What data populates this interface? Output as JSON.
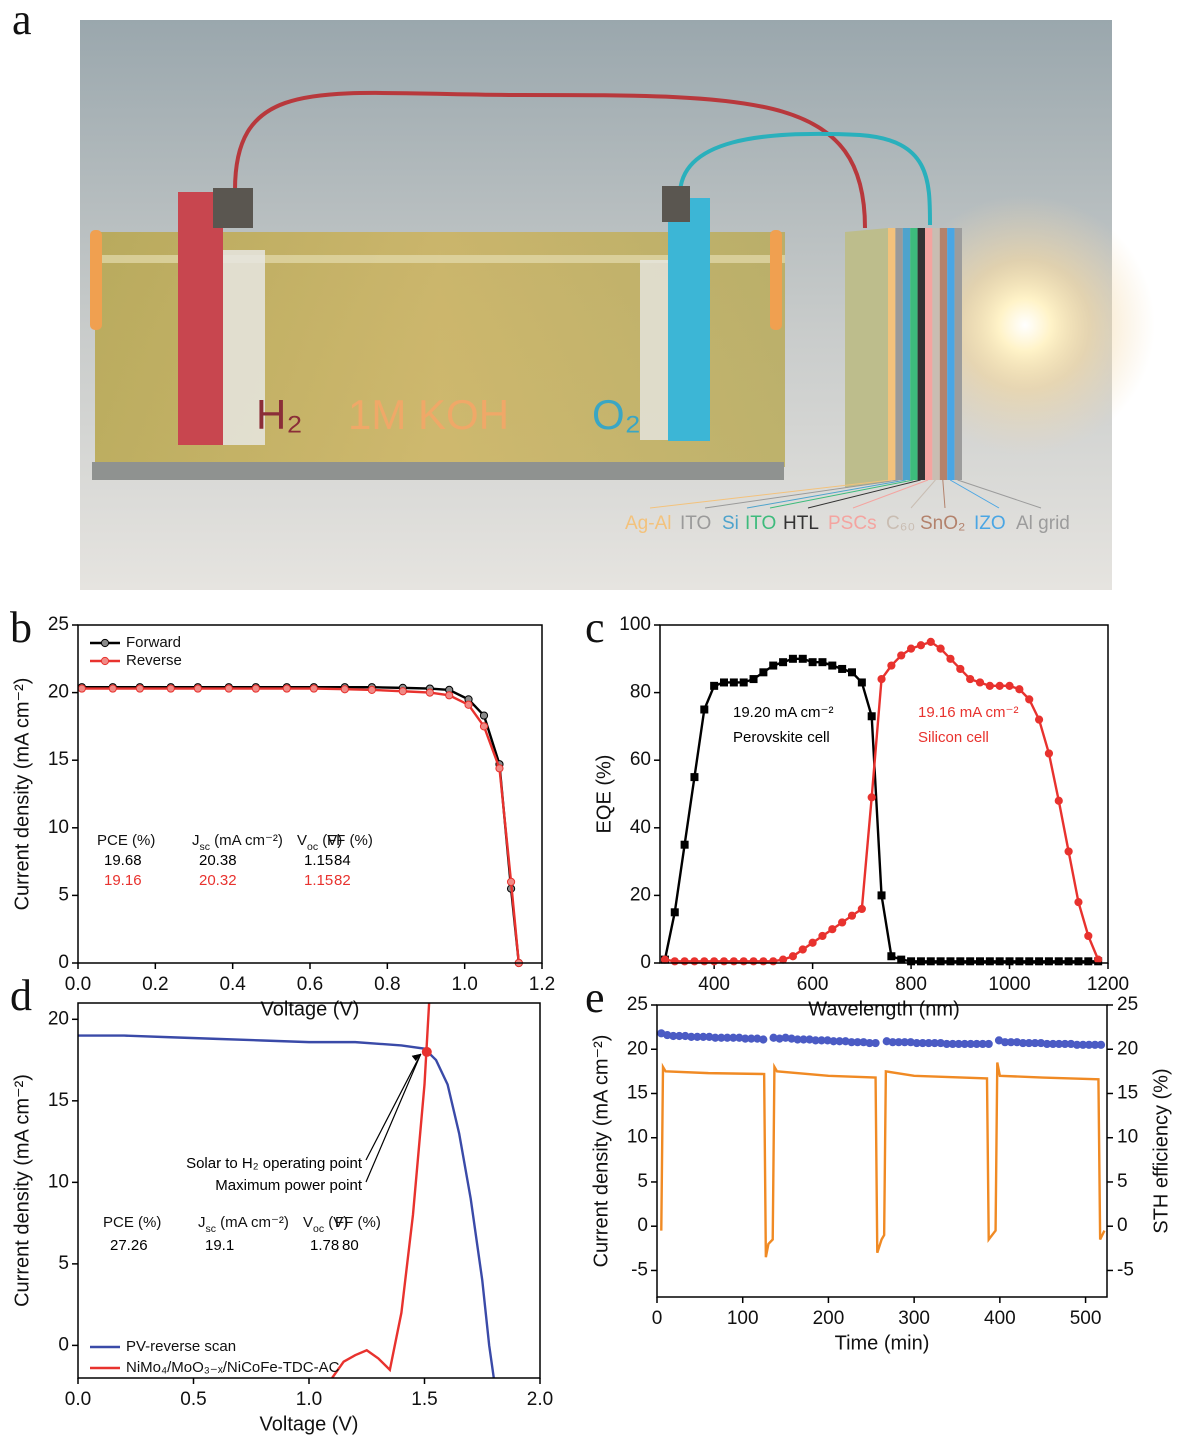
{
  "illustration": {
    "panel": "a",
    "electrolyte": "1M KOH",
    "cathode_gas": "H₂",
    "anode_gas": "O₂",
    "layers": [
      {
        "name": "Ag-Al",
        "color": "#f3c27c"
      },
      {
        "name": "ITO",
        "color": "#9a9a9a"
      },
      {
        "name": "Si",
        "color": "#4ea3cc"
      },
      {
        "name": "ITO",
        "color": "#3dbb7c"
      },
      {
        "name": "HTL",
        "color": "#333333"
      },
      {
        "name": "PSCs",
        "color": "#f4a4a0"
      },
      {
        "name": "C₆₀",
        "color": "#c9bdb2"
      },
      {
        "name": "SnO₂",
        "color": "#b3826c"
      },
      {
        "name": "IZO",
        "color": "#4aa6e4"
      },
      {
        "name": "Al grid",
        "color": "#9c9c9c"
      }
    ]
  },
  "chart_data": [
    {
      "panel": "b",
      "type": "line",
      "xlabel": "Voltage (V)",
      "ylabel": "Current density (mA cm⁻²)",
      "xlim": [
        0,
        1.2
      ],
      "xticks": [
        {
          "value": 0,
          "label": "0.0"
        },
        0.2,
        0.4,
        0.6,
        0.8,
        {
          "value": 1,
          "label": "1.0"
        },
        1.2
      ],
      "ylim": [
        0,
        25
      ],
      "yticks": [
        0,
        5,
        10,
        15,
        20,
        25
      ],
      "legend": "upper left",
      "series": [
        {
          "name": "Forward",
          "color": "#000000",
          "marker": "circle",
          "marker_color": "#8a8a8a",
          "x": [
            0.01,
            0.09,
            0.16,
            0.24,
            0.31,
            0.39,
            0.46,
            0.54,
            0.61,
            0.69,
            0.76,
            0.84,
            0.91,
            0.96,
            1.01,
            1.05,
            1.09,
            1.12,
            1.14
          ],
          "values": [
            20.4,
            20.4,
            20.4,
            20.4,
            20.4,
            20.4,
            20.4,
            20.4,
            20.4,
            20.4,
            20.4,
            20.35,
            20.3,
            20.2,
            19.5,
            18.3,
            14.7,
            5.5,
            0
          ]
        },
        {
          "name": "Reverse",
          "color": "#e8322e",
          "marker": "circle",
          "marker_color": "#f08a86",
          "x": [
            0.01,
            0.09,
            0.16,
            0.24,
            0.31,
            0.39,
            0.46,
            0.54,
            0.61,
            0.69,
            0.76,
            0.84,
            0.91,
            0.96,
            1.01,
            1.05,
            1.09,
            1.12,
            1.14
          ],
          "values": [
            20.3,
            20.3,
            20.3,
            20.3,
            20.3,
            20.3,
            20.3,
            20.3,
            20.3,
            20.25,
            20.2,
            20.1,
            20.0,
            19.8,
            19.1,
            17.5,
            14.4,
            6.0,
            0
          ]
        }
      ],
      "table": {
        "header": [
          "PCE (%)",
          [
            "J",
            {
              "sub": "sc"
            },
            " (mA cm⁻²)"
          ],
          [
            "V",
            {
              "sub": "oc"
            },
            " (V)"
          ],
          "FF (%)"
        ],
        "rows": [
          {
            "color": "#000000",
            "cells": [
              "19.68",
              "20.38",
              "1.15",
              "84"
            ]
          },
          {
            "color": "#e8322e",
            "cells": [
              "19.16",
              "20.32",
              "1.15",
              "82"
            ]
          }
        ]
      }
    },
    {
      "panel": "c",
      "type": "line",
      "xlabel": "Wavelength (nm)",
      "ylabel": "EQE (%)",
      "xlim": [
        290,
        1200
      ],
      "xticks": [
        400,
        600,
        800,
        1000,
        1200
      ],
      "ylim": [
        0,
        100
      ],
      "yticks": [
        0,
        20,
        40,
        60,
        80,
        100
      ],
      "series": [
        {
          "name": "Perovskite cell",
          "color": "#000000",
          "marker": "square",
          "x": [
            300,
            320,
            340,
            360,
            380,
            400,
            420,
            440,
            460,
            480,
            500,
            520,
            540,
            560,
            580,
            600,
            620,
            640,
            660,
            680,
            700,
            720,
            740,
            760,
            780,
            800,
            820,
            840,
            860,
            880,
            900,
            920,
            940,
            960,
            980,
            1000,
            1020,
            1040,
            1060,
            1080,
            1100,
            1120,
            1140,
            1160,
            1180
          ],
          "values": [
            1,
            15,
            35,
            55,
            75,
            82,
            83,
            83,
            83,
            84,
            86,
            88,
            89,
            90,
            90,
            89,
            89,
            88,
            87,
            86,
            83,
            73,
            20,
            2,
            1,
            0.5,
            0.5,
            0.5,
            0.5,
            0.5,
            0.5,
            0.5,
            0.5,
            0.5,
            0.5,
            0.5,
            0.5,
            0.5,
            0.5,
            0.5,
            0.5,
            0.5,
            0.5,
            0.5,
            0.5
          ]
        },
        {
          "name": "Silicon cell",
          "color": "#e8322e",
          "marker": "circle",
          "x": [
            300,
            320,
            340,
            360,
            380,
            400,
            420,
            440,
            460,
            480,
            500,
            520,
            540,
            560,
            580,
            600,
            620,
            640,
            660,
            680,
            700,
            720,
            740,
            760,
            780,
            800,
            820,
            840,
            860,
            880,
            900,
            920,
            940,
            960,
            980,
            1000,
            1020,
            1040,
            1060,
            1080,
            1100,
            1120,
            1140,
            1160,
            1180
          ],
          "values": [
            1,
            0.5,
            0.5,
            0.5,
            0.5,
            0.5,
            0.5,
            0.5,
            0.5,
            0.5,
            0.5,
            0.5,
            1,
            2,
            4,
            6,
            8,
            10,
            12,
            14,
            16,
            49,
            84,
            88,
            91,
            93,
            94,
            95,
            93,
            90,
            87,
            84,
            83,
            82,
            82,
            82,
            81,
            78,
            72,
            62,
            48,
            33,
            18,
            8,
            1
          ]
        }
      ],
      "annotations": [
        {
          "text": "19.20 mA cm⁻²",
          "color": "#000000"
        },
        {
          "text": "Perovskite cell",
          "color": "#000000"
        },
        {
          "text": "19.16 mA cm⁻²",
          "color": "#e8322e"
        },
        {
          "text": "Silicon cell",
          "color": "#e8322e"
        }
      ]
    },
    {
      "panel": "d",
      "type": "line",
      "xlabel": "Voltage (V)",
      "ylabel": "Current density (mA cm⁻²)",
      "xlim": [
        0,
        2
      ],
      "xticks": [
        {
          "value": 0,
          "label": "0.0"
        },
        0.5,
        {
          "value": 1,
          "label": "1.0"
        },
        1.5,
        {
          "value": 2,
          "label": "2.0"
        }
      ],
      "ylim": [
        -2,
        21
      ],
      "yticks": [
        0,
        5,
        10,
        15,
        20
      ],
      "legend": "lower left",
      "series": [
        {
          "name": "PV-reverse scan",
          "color": "#3a4aa8",
          "x": [
            0,
            0.2,
            0.4,
            0.6,
            0.8,
            1.0,
            1.2,
            1.4,
            1.5,
            1.55,
            1.6,
            1.65,
            1.7,
            1.75,
            1.78,
            1.8
          ],
          "values": [
            19,
            19,
            18.9,
            18.8,
            18.7,
            18.6,
            18.6,
            18.4,
            18.2,
            17.5,
            16,
            13,
            9,
            4,
            0,
            -2
          ]
        },
        {
          "name": "NiMo₄/MoO₃₋ₓ/NiCoFe-TDC-AC",
          "color": "#e8322e",
          "x": [
            1.1,
            1.15,
            1.2,
            1.25,
            1.3,
            1.35,
            1.4,
            1.45,
            1.5,
            1.52
          ],
          "values": [
            -2,
            -1,
            -0.6,
            -0.3,
            -0.8,
            -1.5,
            2,
            8,
            16,
            21
          ]
        }
      ],
      "operating_point": {
        "x": 1.51,
        "y": 18.0,
        "color": "#e8322e"
      },
      "annotations": [
        {
          "text": "Solar to H₂ operating point",
          "color": "#000000"
        },
        {
          "text": "Maximum power point",
          "color": "#000000"
        }
      ],
      "table": {
        "header": [
          "PCE (%)",
          [
            "J",
            {
              "sub": "sc"
            },
            " (mA cm⁻²)"
          ],
          [
            "V",
            {
              "sub": "oc"
            },
            " (V)"
          ],
          "FF (%)"
        ],
        "rows": [
          {
            "color": "#000000",
            "cells": [
              "27.26",
              "19.1",
              "1.78",
              "80"
            ]
          }
        ]
      }
    },
    {
      "panel": "e",
      "type": "line",
      "xlabel": "Time (min)",
      "ylabel": "Current density (mA cm⁻²)",
      "y2label": "STH efficiency (%)",
      "xlim": [
        0,
        525
      ],
      "xticks": [
        0,
        100,
        200,
        300,
        400,
        500
      ],
      "ylim": [
        -8,
        25
      ],
      "yticks": [
        -5,
        0,
        5,
        10,
        15,
        20,
        25
      ],
      "y2lim": [
        -8,
        25
      ],
      "y2ticks": [
        -5,
        0,
        5,
        10,
        15,
        20,
        25
      ],
      "series": [
        {
          "name": "Current density",
          "color": "#f08a24",
          "x": [
            5,
            7,
            10,
            60,
            125,
            127,
            130,
            135,
            137,
            140,
            200,
            255,
            257,
            262,
            265,
            267,
            300,
            385,
            387,
            395,
            397,
            400,
            450,
            515,
            517,
            522
          ],
          "values": [
            -0.5,
            18,
            17.5,
            17.3,
            17.2,
            -3.5,
            -2,
            -1.5,
            18,
            17.5,
            17,
            16.8,
            -3,
            -1.5,
            -1,
            17.5,
            17,
            16.7,
            -1.5,
            -0.5,
            18.5,
            17,
            16.8,
            16.6,
            -1.5,
            -0.5
          ]
        },
        {
          "name": "STH efficiency",
          "color": "#4b5bc4",
          "axis": "y2",
          "line": false,
          "marker": "circle",
          "x": [
            5,
            12,
            19,
            26,
            33,
            40,
            47,
            54,
            61,
            68,
            75,
            82,
            89,
            96,
            103,
            110,
            117,
            124,
            136,
            143,
            150,
            157,
            164,
            171,
            178,
            185,
            192,
            199,
            206,
            213,
            220,
            227,
            234,
            241,
            248,
            255,
            268,
            275,
            282,
            289,
            296,
            303,
            310,
            317,
            324,
            331,
            338,
            345,
            352,
            359,
            366,
            373,
            380,
            387,
            399,
            406,
            413,
            420,
            427,
            434,
            441,
            448,
            455,
            462,
            469,
            476,
            483,
            490,
            497,
            504,
            511,
            518
          ],
          "values": [
            21.8,
            21.6,
            21.5,
            21.5,
            21.5,
            21.4,
            21.4,
            21.4,
            21.4,
            21.3,
            21.3,
            21.3,
            21.3,
            21.3,
            21.2,
            21.2,
            21.2,
            21.1,
            21.3,
            21.2,
            21.3,
            21.2,
            21.1,
            21.1,
            21.1,
            21.0,
            21.0,
            21.0,
            20.9,
            20.9,
            20.9,
            20.8,
            20.8,
            20.8,
            20.7,
            20.7,
            20.9,
            20.8,
            20.8,
            20.8,
            20.8,
            20.7,
            20.7,
            20.7,
            20.7,
            20.7,
            20.6,
            20.6,
            20.6,
            20.6,
            20.6,
            20.6,
            20.6,
            20.6,
            21.0,
            20.8,
            20.8,
            20.8,
            20.7,
            20.7,
            20.7,
            20.7,
            20.6,
            20.6,
            20.6,
            20.6,
            20.6,
            20.5,
            20.5,
            20.5,
            20.5,
            20.5
          ]
        }
      ]
    }
  ]
}
